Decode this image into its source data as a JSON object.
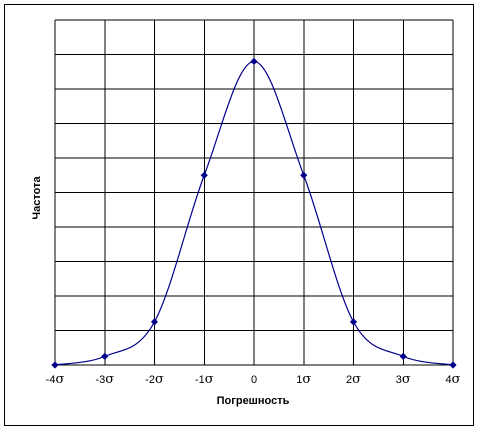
{
  "chart_data": {
    "type": "line",
    "xlabel": "Погрешность",
    "ylabel": "Частота",
    "xlim": [
      -4,
      4
    ],
    "ylim": [
      0,
      1.0
    ],
    "x_tick_values": [
      -4,
      -3,
      -2,
      -1,
      0,
      1,
      2,
      3,
      4
    ],
    "x_tick_labels": [
      "-4σ",
      "-3σ",
      "-2σ",
      "-1σ",
      "0",
      "1σ",
      "2σ",
      "3σ",
      "4σ"
    ],
    "y_gridlines": [
      0.1,
      0.2,
      0.3,
      0.4,
      0.5,
      0.6,
      0.7,
      0.8,
      0.9,
      1.0
    ],
    "grid": true,
    "legend": "none",
    "series": [
      {
        "x": [
          -4,
          -3,
          -2,
          -1,
          0,
          1,
          2,
          3,
          4
        ],
        "y": [
          0.0,
          0.025,
          0.125,
          0.55,
          0.88,
          0.55,
          0.125,
          0.025,
          0.0
        ],
        "color": "#00008b",
        "marker_color": "#00008b",
        "marker": "diamond",
        "smooth": true
      }
    ]
  }
}
